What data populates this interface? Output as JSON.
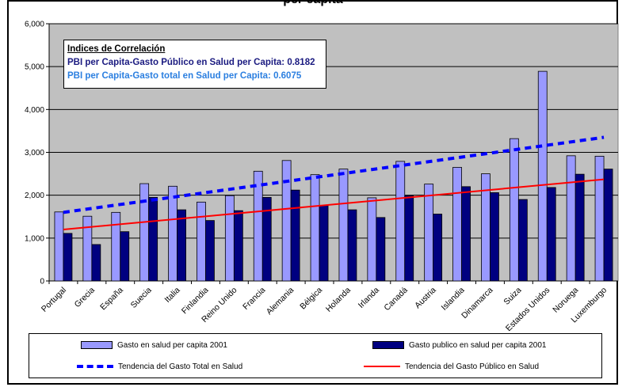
{
  "chart_data": {
    "type": "bar",
    "title": "per capita",
    "categories": [
      "Portugal",
      "Grecia",
      "España",
      "Suecia",
      "Italia",
      "Finlandia",
      "Reino Unido",
      "Francia",
      "Alemania",
      "Bélgica",
      "Holanda",
      "Irlanda",
      "Canadá",
      "Austria",
      "Islandia",
      "Dinamarca",
      "Suiza",
      "Estados Unidos",
      "Noruega",
      "Luxemburgo"
    ],
    "series": [
      {
        "name": "Gasto en salud per capita 2001",
        "color": "#9999ff",
        "values": [
          1610,
          1510,
          1600,
          2270,
          2210,
          1840,
          1990,
          2560,
          2810,
          2480,
          2610,
          1940,
          2790,
          2260,
          2650,
          2500,
          3320,
          4890,
          2920,
          2910
        ]
      },
      {
        "name": "Gasto publico en salud per capita 2001",
        "color": "#000080",
        "values": [
          1110,
          850,
          1150,
          1950,
          1660,
          1410,
          1640,
          1950,
          2120,
          1760,
          1660,
          1480,
          1990,
          1560,
          2200,
          2060,
          1900,
          2180,
          2490,
          2610
        ]
      }
    ],
    "trendlines": [
      {
        "name": "Tendencia del Gasto Total en Salud",
        "color": "#0000ff",
        "style": "dashed",
        "start": 1600,
        "end": 3350
      },
      {
        "name": "Tendencia del Gasto Público en Salud",
        "color": "#ff0000",
        "style": "solid",
        "start": 1200,
        "end": 2370
      }
    ],
    "ylim": [
      0,
      6000
    ],
    "yticks": [
      "0",
      "1,000",
      "2,000",
      "3,000",
      "4,000",
      "5,000",
      "6,000"
    ],
    "grid": true,
    "legend_position": "bottom",
    "annotation": {
      "heading": "Indices de Correlación",
      "line1": "PBI per Capita-Gasto Público en Salud per Capita: 0.8182",
      "line2": "PBI per Capita-Gasto total en Salud per Capita: 0.6075"
    }
  }
}
